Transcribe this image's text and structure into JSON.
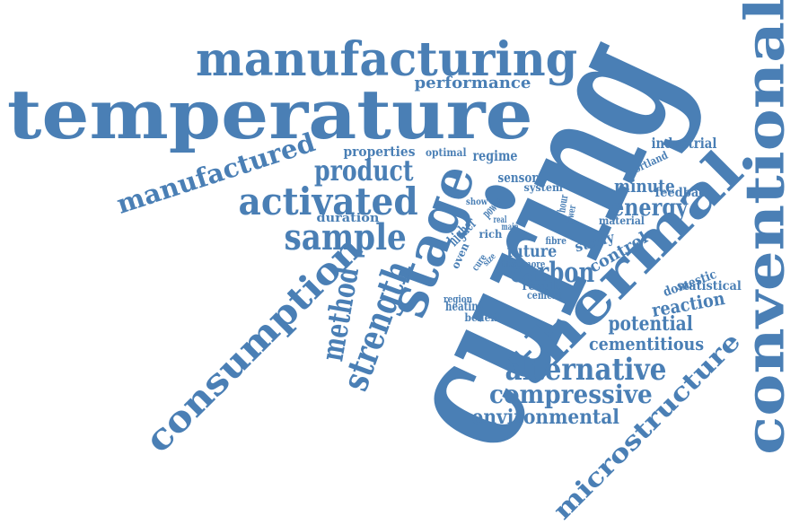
{
  "colors": {
    "text": "#4a7fb5",
    "background": "#ffffff"
  },
  "words": [
    {
      "text": "curing"
    },
    {
      "text": "temperature"
    },
    {
      "text": "manufacturing"
    },
    {
      "text": "thermal"
    },
    {
      "text": "conventional"
    },
    {
      "text": "stage"
    },
    {
      "text": "consumption"
    },
    {
      "text": "microstructure"
    },
    {
      "text": "alternative"
    },
    {
      "text": "compressive"
    },
    {
      "text": "activated"
    },
    {
      "text": "manufactured"
    },
    {
      "text": "sample"
    },
    {
      "text": "strength"
    },
    {
      "text": "method"
    },
    {
      "text": "environmental"
    },
    {
      "text": "product"
    },
    {
      "text": "carbon"
    },
    {
      "text": "energy"
    },
    {
      "text": "potential"
    },
    {
      "text": "cementitious"
    },
    {
      "text": "performance"
    },
    {
      "text": "reaction"
    },
    {
      "text": "industrial"
    },
    {
      "text": "minute"
    },
    {
      "text": "feedback"
    },
    {
      "text": "material"
    },
    {
      "text": "control"
    },
    {
      "text": "future"
    },
    {
      "text": "study"
    },
    {
      "text": "domestic"
    },
    {
      "text": "statistical"
    },
    {
      "text": "regime"
    },
    {
      "text": "properties"
    },
    {
      "text": "optimal"
    },
    {
      "text": "sensor"
    },
    {
      "text": "system"
    },
    {
      "text": "higher"
    },
    {
      "text": "power"
    },
    {
      "text": "duration"
    },
    {
      "text": "portland"
    },
    {
      "text": "heating"
    },
    {
      "text": "region"
    },
    {
      "text": "benefit"
    },
    {
      "text": "result"
    },
    {
      "text": "cement"
    },
    {
      "text": "rich"
    },
    {
      "text": "time"
    },
    {
      "text": "more"
    },
    {
      "text": "fibre"
    },
    {
      "text": "cure"
    },
    {
      "text": "size"
    },
    {
      "text": "oven"
    },
    {
      "text": "real"
    },
    {
      "text": "main"
    },
    {
      "text": "show"
    },
    {
      "text": "hour"
    },
    {
      "text": "lower"
    }
  ]
}
